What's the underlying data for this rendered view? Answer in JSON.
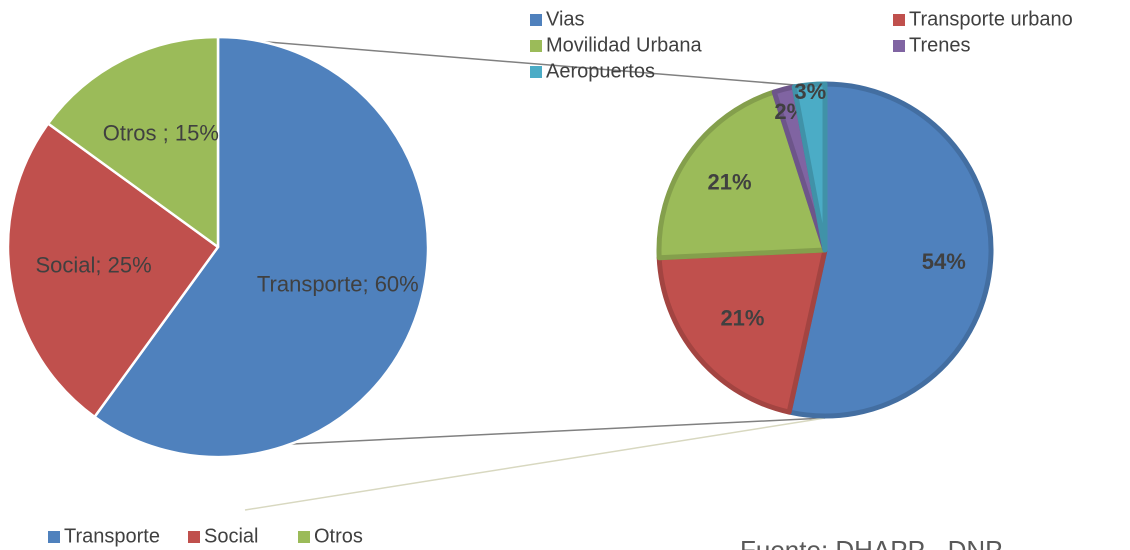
{
  "chart_data": [
    {
      "type": "pie",
      "categories": [
        "Transporte",
        "Social",
        "Otros"
      ],
      "values": [
        60,
        25,
        15
      ],
      "value_labels": [
        "Transporte; 60%",
        "Social; 25%",
        "Otros ; 15%"
      ],
      "colors": [
        "#4f81bd",
        "#c0504d",
        "#9bbb59"
      ],
      "legend": "bottom"
    },
    {
      "type": "pie",
      "categories": [
        "Vias",
        "Transporte urbano",
        "Movilidad Urbana",
        "Trenes",
        "Aeropuertos"
      ],
      "values": [
        54,
        21,
        21,
        2,
        3
      ],
      "value_labels": [
        "54%",
        "21%",
        "21%",
        "2%",
        "3%"
      ],
      "colors": [
        "#4f81bd",
        "#c0504d",
        "#9bbb59",
        "#8064a2",
        "#4bacc6"
      ],
      "legend": "top"
    }
  ],
  "source": "Fuente: DHAPP - DNP"
}
